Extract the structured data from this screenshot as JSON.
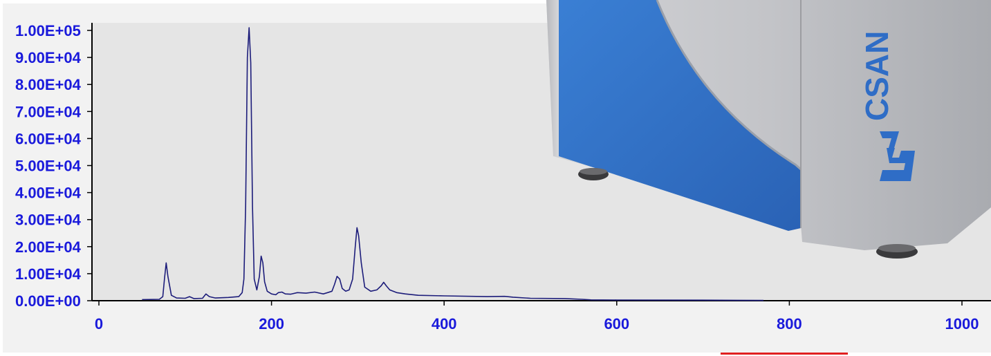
{
  "chart_data": {
    "type": "line",
    "title": "",
    "xlabel": "",
    "ylabel": "",
    "xlim": [
      0,
      1000
    ],
    "ylim": [
      0,
      100000
    ],
    "x_ticks": [
      0,
      200,
      400,
      600,
      800,
      1000
    ],
    "y_ticks": [
      0,
      10000,
      20000,
      30000,
      40000,
      50000,
      60000,
      70000,
      80000,
      90000,
      100000
    ],
    "x_tick_labels": [
      "0",
      "200",
      "400",
      "600",
      "800",
      "1000"
    ],
    "y_tick_labels": [
      "0.00E+00",
      "1.00E+04",
      "2.00E+04",
      "3.00E+04",
      "4.00E+04",
      "5.00E+04",
      "6.00E+04",
      "7.00E+04",
      "8.00E+04",
      "9.00E+04",
      "1.00E+05"
    ],
    "grid": false,
    "series": [
      {
        "color": "#1c1c7a",
        "x": [
          50,
          70,
          74,
          76,
          78,
          80,
          84,
          90,
          100,
          105,
          110,
          120,
          124,
          128,
          135,
          150,
          162,
          166,
          168,
          170,
          172,
          174,
          176,
          178,
          180,
          183,
          186,
          188,
          190,
          192,
          195,
          200,
          205,
          208,
          212,
          216,
          222,
          230,
          240,
          250,
          260,
          265,
          270,
          273,
          276,
          279,
          282,
          286,
          290,
          294,
          297,
          299,
          301,
          304,
          308,
          315,
          322,
          327,
          330,
          333,
          337,
          345,
          355,
          370,
          400,
          450,
          470,
          480,
          500,
          540,
          560,
          570,
          600,
          700,
          740,
          770
        ],
        "y": [
          400,
          500,
          1500,
          8000,
          14000,
          9000,
          2000,
          1000,
          900,
          1500,
          800,
          900,
          2500,
          1500,
          1000,
          1200,
          1500,
          3000,
          8000,
          35000,
          90000,
          101000,
          88000,
          35000,
          8000,
          4000,
          9000,
          16500,
          14000,
          7000,
          3500,
          2500,
          2200,
          3000,
          3200,
          2500,
          2400,
          3000,
          2800,
          3200,
          2500,
          3000,
          3500,
          6000,
          9000,
          8000,
          4500,
          3500,
          4000,
          8000,
          20000,
          27000,
          24000,
          14000,
          5000,
          3500,
          4000,
          5500,
          6800,
          5500,
          4000,
          3000,
          2500,
          2000,
          1800,
          1500,
          1600,
          1300,
          900,
          800,
          500,
          300,
          250,
          200,
          150,
          100
        ]
      }
    ]
  },
  "photo": {
    "brand_text": "CSAN"
  }
}
